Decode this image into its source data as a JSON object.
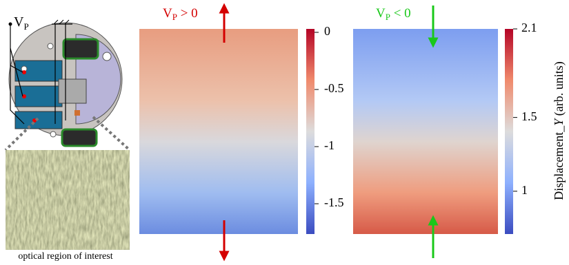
{
  "schematic": {
    "voltage_label": {
      "main": "V",
      "sub": "P"
    },
    "caption": "optical region of interest"
  },
  "panels": [
    {
      "label": {
        "main": "V",
        "sub": "P",
        "rest": " > 0"
      },
      "colorbar": {
        "lim": [
          0.03,
          -1.765
        ],
        "ticks": [
          0,
          -0.5,
          -1,
          -1.5
        ]
      }
    },
    {
      "label": {
        "main": "V",
        "sub": "P",
        "rest": " < 0"
      },
      "colorbar": {
        "lim": [
          2.1,
          0.71
        ],
        "ticks": [
          2.1,
          1.5,
          1
        ]
      },
      "axis_label": {
        "pre": "Displacement_",
        "italic": "Y",
        "post": " (arb. units)"
      }
    }
  ]
}
